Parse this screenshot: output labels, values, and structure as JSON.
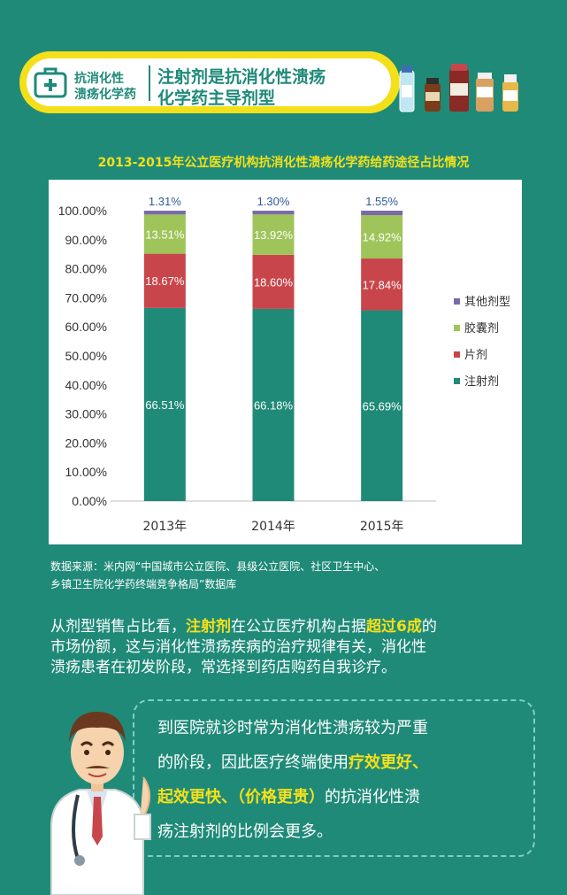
{
  "header": {
    "category_line1": "抗消化性",
    "category_line2": "溃疡化学药",
    "title_line1": "注射剂是抗消化性溃疡",
    "title_line2": "化学药主导剂型"
  },
  "chart_data": {
    "type": "bar",
    "stacked": true,
    "title": "2013-2015年公立医疗机构抗消化性溃疡化学药给药途径占比情况",
    "categories": [
      "2013年",
      "2014年",
      "2015年"
    ],
    "series": [
      {
        "name": "注射剂",
        "values": [
          66.51,
          66.18,
          65.69
        ],
        "labels": [
          "66.51%",
          "66.18%",
          "65.69%"
        ],
        "color": "#1f8a78"
      },
      {
        "name": "片剂",
        "values": [
          18.67,
          18.6,
          17.84
        ],
        "labels": [
          "18.67%",
          "18.60%",
          "17.84%"
        ],
        "color": "#c8464b"
      },
      {
        "name": "胶囊剂",
        "values": [
          13.51,
          13.92,
          14.92
        ],
        "labels": [
          "13.51%",
          "13.92%",
          "14.92%"
        ],
        "color": "#9fc45a"
      },
      {
        "name": "其他剂型",
        "values": [
          1.31,
          1.3,
          1.55
        ],
        "labels": [
          "1.31%",
          "1.30%",
          "1.55%"
        ],
        "color": "#7a6aa6"
      }
    ],
    "ylim": [
      0,
      100
    ],
    "yticks": [
      "0.00%",
      "10.00%",
      "20.00%",
      "30.00%",
      "40.00%",
      "50.00%",
      "60.00%",
      "70.00%",
      "80.00%",
      "90.00%",
      "100.00%"
    ],
    "legend_position": "right",
    "grid": false
  },
  "source": {
    "line1": "数据来源：米内网“中国城市公立医院、县级公立医院、社区卫生中心、",
    "line2": "乡镇卫生院化学药终端竞争格局”数据库"
  },
  "paragraph": {
    "l1_a": "从剂型销售占比看，",
    "l1_b": "注射剂",
    "l1_c": "在公立医疗机构占据",
    "l1_d": "超过6成",
    "l1_e": "的",
    "l2": "市场份额，这与消化性溃疡疾病的治疗规律有关，消化性",
    "l3": "溃疡患者在初发阶段，常选择到药店购药自我诊疗。"
  },
  "bubble": {
    "l1": "到医院就诊时常为消化性溃疡较为严重",
    "l2": "的阶段，因此医疗终端使用",
    "l2_hl": "疗效更好、",
    "l3_hl": "起效更快、（价格更贵）",
    "l3": "的抗消化性溃",
    "l4": "疡注射剂的比例会更多。"
  },
  "colors": {
    "background": "#1f8a78",
    "accent_yellow": "#f4e01a"
  }
}
